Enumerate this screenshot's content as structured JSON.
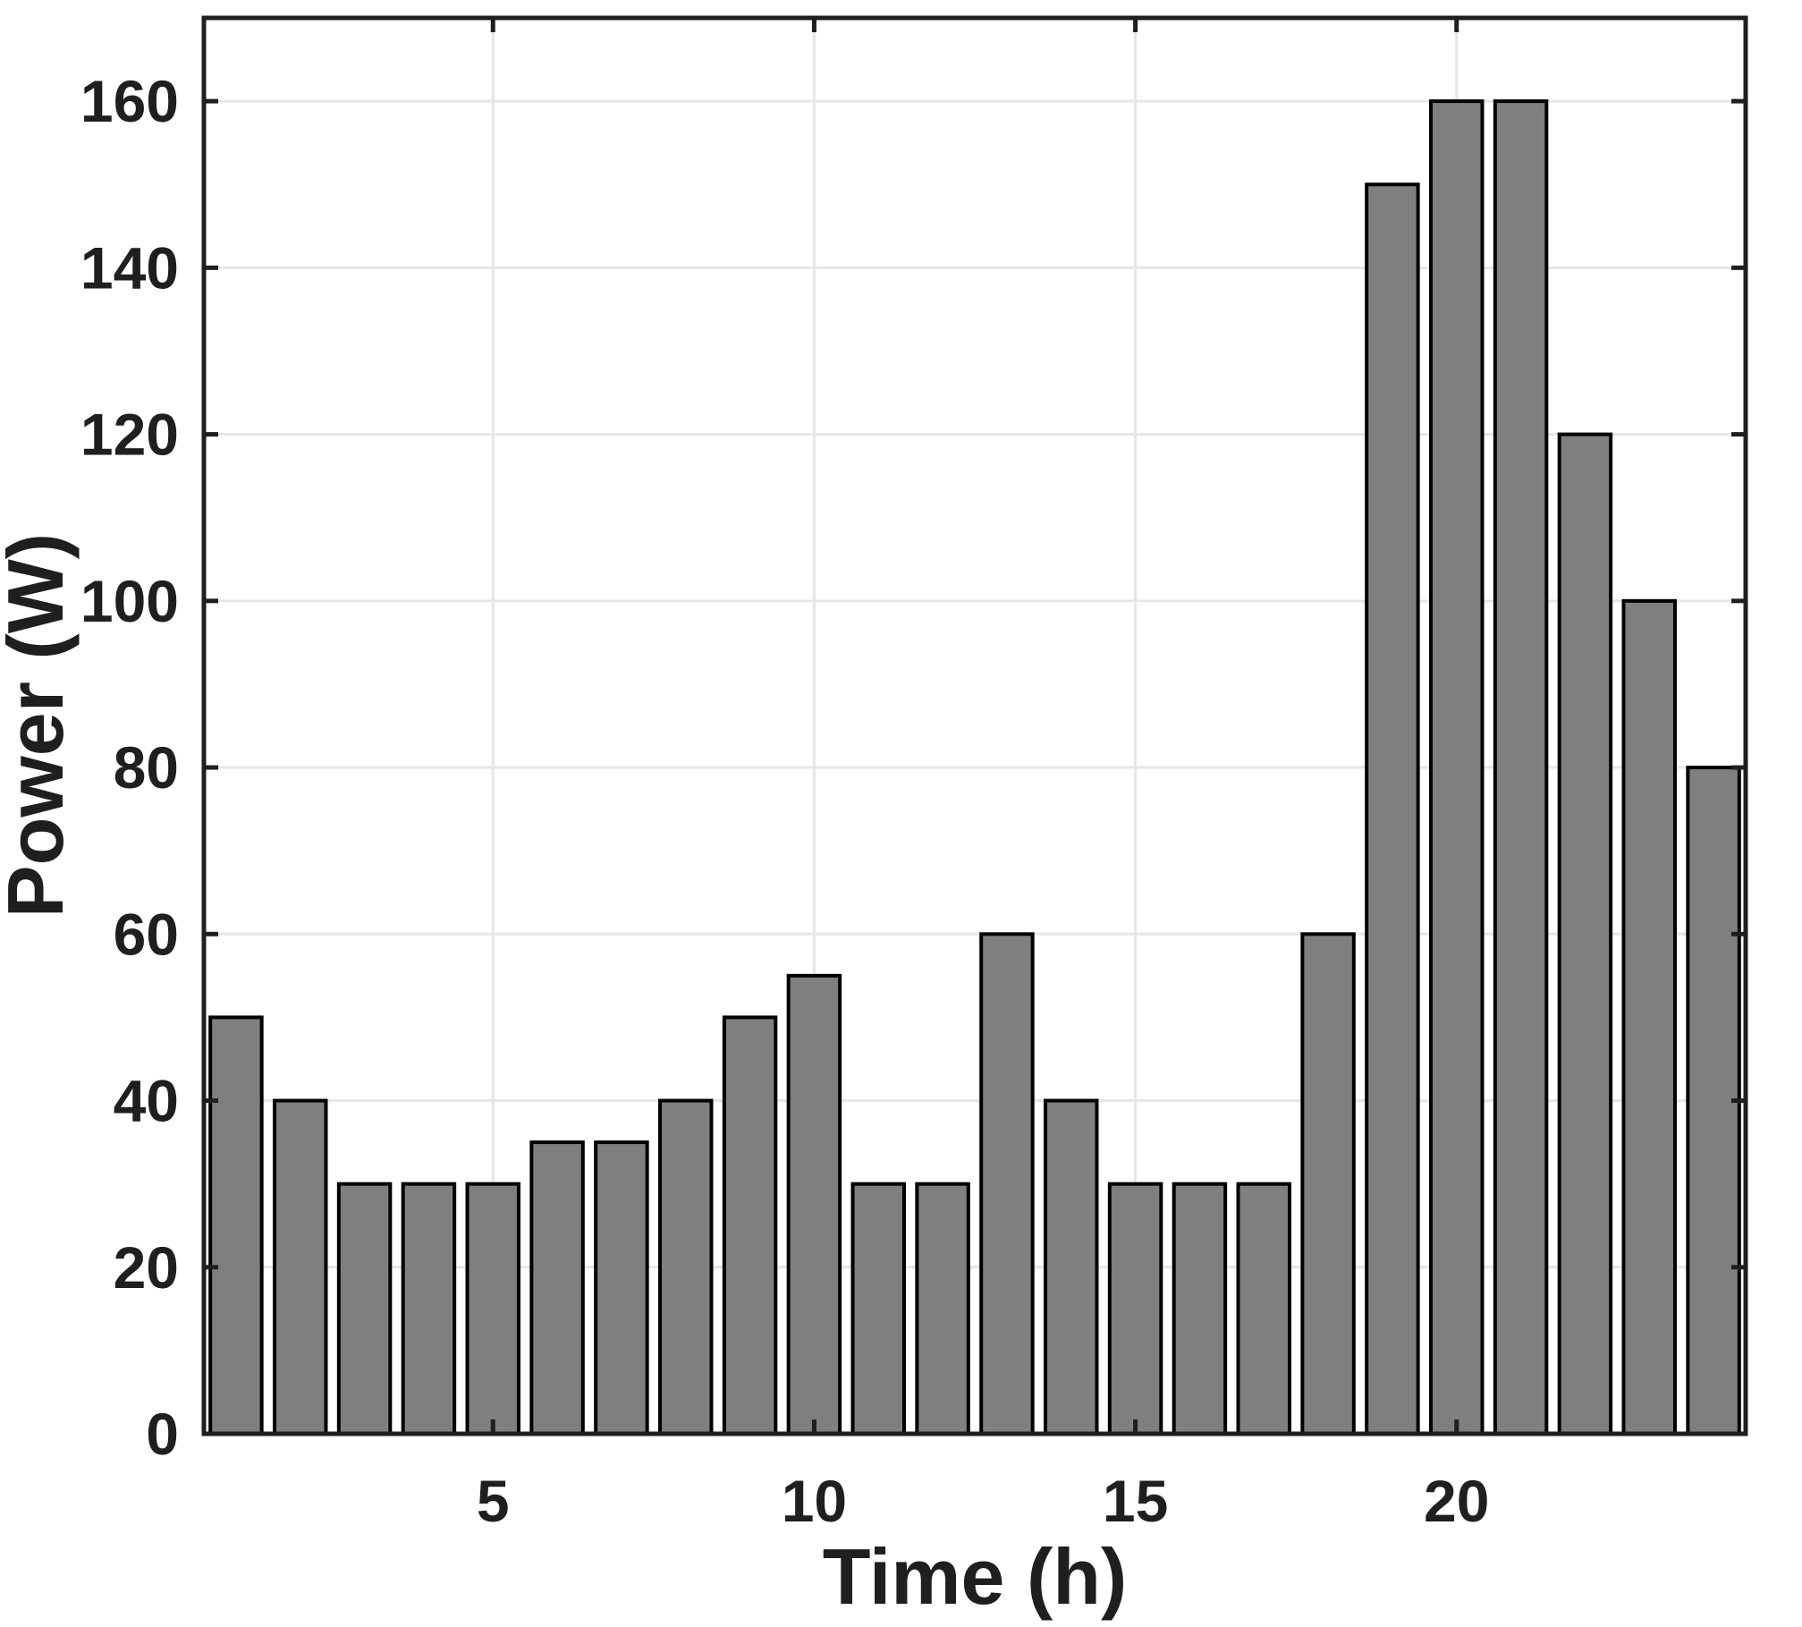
{
  "figure": {
    "background": "#ffffff"
  },
  "chart_data": {
    "type": "bar",
    "x": [
      1,
      2,
      3,
      4,
      5,
      6,
      7,
      8,
      9,
      10,
      11,
      12,
      13,
      14,
      15,
      16,
      17,
      18,
      19,
      20,
      21,
      22,
      23,
      24
    ],
    "values": [
      50,
      40,
      30,
      30,
      30,
      35,
      35,
      40,
      50,
      55,
      30,
      30,
      60,
      40,
      30,
      30,
      30,
      60,
      150,
      160,
      160,
      120,
      100,
      80
    ],
    "xlabel": "Time (h)",
    "ylabel": "Power (W)",
    "xlim": [
      0.5,
      24.5
    ],
    "ylim": [
      0,
      170
    ],
    "xticks": [
      5,
      10,
      15,
      20
    ],
    "yticks": [
      0,
      20,
      40,
      60,
      80,
      100,
      120,
      140,
      160
    ],
    "grid": true,
    "legend": null,
    "bar_width_fraction": 0.8,
    "colors": {
      "bar_fill": "#7f7f7f",
      "bar_edge": "#000000",
      "grid": "#e6e6e6",
      "axis": "#1f1f1f",
      "text": "#1f1f1f",
      "background": "#ffffff"
    }
  }
}
